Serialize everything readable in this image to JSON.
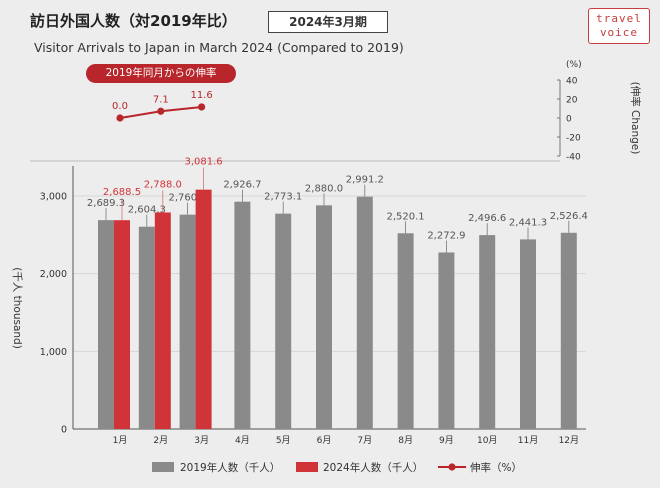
{
  "header": {
    "title": "訪日外国人数（対2019年比）",
    "period": "2024年3月期",
    "subtitle": "Visitor Arrivals to Japan in March 2024 (Compared to 2019)",
    "logo_line1": "travel",
    "logo_line2": "voice"
  },
  "colors": {
    "series_2019": "#8a8a8a",
    "series_2024": "#d13438",
    "growth": "#b8262b"
  },
  "chart_data": [
    {
      "type": "line",
      "title": "2019年同月からの伸率",
      "ylabel": "(伸率 Change)",
      "yunit": "(%)",
      "ylim": [
        -40,
        40
      ],
      "yticks": [
        40,
        20,
        0,
        -20,
        -40
      ],
      "categories": [
        "1月",
        "2月",
        "3月"
      ],
      "series": [
        {
          "name": "伸率（%）",
          "values": [
            0.0,
            7.1,
            11.6
          ],
          "labels": [
            "0.0",
            "7.1",
            "11.6"
          ]
        }
      ]
    },
    {
      "type": "bar",
      "ylabel": "(千人 thousand)",
      "ylim": [
        0,
        3000
      ],
      "yticks": [
        0,
        1000,
        2000,
        3000
      ],
      "ytick_labels": [
        "0",
        "1,000",
        "2,000",
        "3,000"
      ],
      "categories": [
        "1月",
        "2月",
        "3月",
        "4月",
        "5月",
        "6月",
        "7月",
        "8月",
        "9月",
        "10月",
        "11月",
        "12月"
      ],
      "series": [
        {
          "name": "2019年人数（千人）",
          "values": [
            2689.3,
            2604.3,
            2760.1,
            2926.7,
            2773.1,
            2880.0,
            2991.2,
            2520.1,
            2272.9,
            2496.6,
            2441.3,
            2526.4
          ],
          "labels": [
            "2,689.3",
            "2,604.3",
            "2,760.1",
            "2,926.7",
            "2,773.1",
            "2,880.0",
            "2,991.2",
            "2,520.1",
            "2,272.9",
            "2,496.6",
            "2,441.3",
            "2,526.4"
          ]
        },
        {
          "name": "2024年人数（千人）",
          "values": [
            2688.5,
            2788.0,
            3081.6,
            null,
            null,
            null,
            null,
            null,
            null,
            null,
            null,
            null
          ],
          "labels": [
            "2,688.5",
            "2,788.0",
            "3,081.6",
            "",
            "",
            "",
            "",
            "",
            "",
            "",
            "",
            ""
          ]
        }
      ],
      "legend_position": "bottom"
    }
  ]
}
